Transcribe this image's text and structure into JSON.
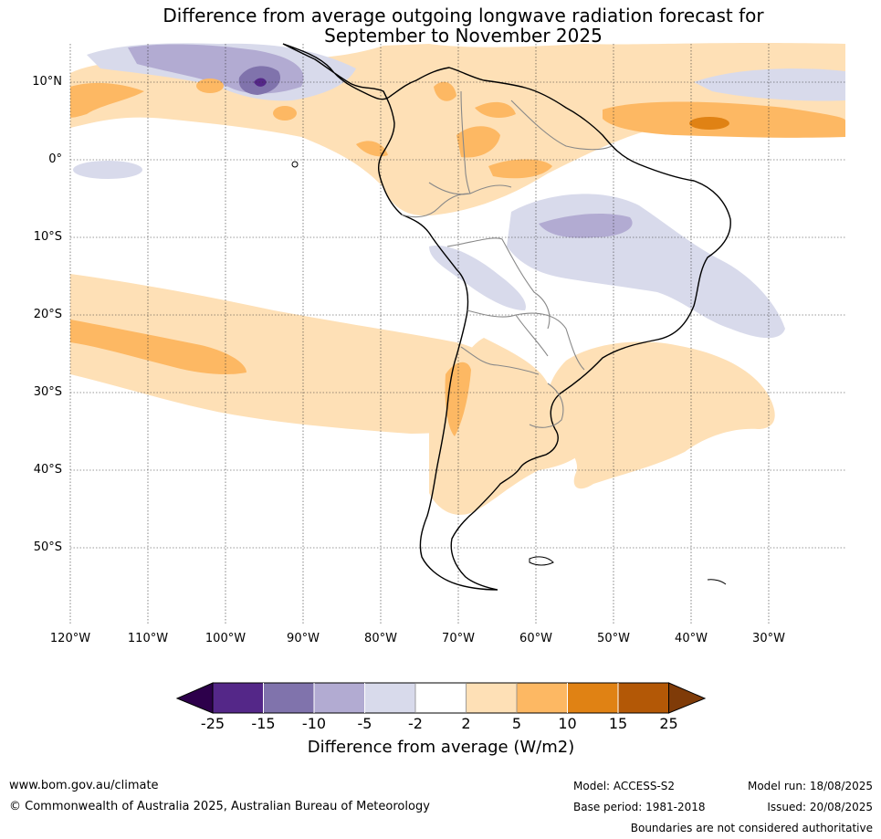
{
  "title_line1": "Difference from average outgoing longwave radiation forecast for",
  "title_line2": "September to November 2025",
  "lat_labels": [
    "10°N",
    "0°",
    "10°S",
    "20°S",
    "30°S",
    "40°S",
    "50°S"
  ],
  "lon_labels": [
    "120°W",
    "110°W",
    "100°W",
    "90°W",
    "80°W",
    "70°W",
    "60°W",
    "50°W",
    "40°W",
    "30°W"
  ],
  "colorbar": {
    "ticks": [
      "-25",
      "-15",
      "-10",
      "-5",
      "-2",
      "2",
      "5",
      "10",
      "15",
      "25"
    ],
    "colors": [
      "#2d004b",
      "#542788",
      "#8073ac",
      "#b2abd2",
      "#d8daeb",
      "#ffffff",
      "#fee0b6",
      "#fdb863",
      "#e08214",
      "#b35806",
      "#7f3b08"
    ],
    "label": "Difference from average (W/m2)"
  },
  "footer": {
    "website": "www.bom.gov.au/climate",
    "copyright": "© Commonwealth of Australia 2025, Australian Bureau of Meteorology",
    "model": "Model: ACCESS-S2",
    "base_period": "Base period: 1981-2018",
    "model_run": "Model run: 18/08/2025",
    "issued": "Issued: 20/08/2025",
    "disclaimer": "Boundaries are not considered authoritative"
  }
}
